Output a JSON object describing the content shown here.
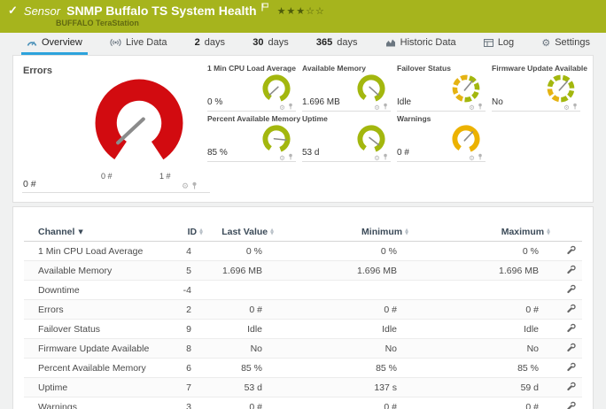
{
  "header": {
    "check_icon": "✓",
    "kind": "Sensor",
    "title": "SNMP Buffalo TS System Health",
    "device": "BUFFALO TeraStation",
    "stars_filled": "★★★",
    "stars_empty": "☆☆"
  },
  "tabs": [
    {
      "label": "Overview",
      "icon": "gauge-icon",
      "active": true
    },
    {
      "label": "Live Data",
      "icon": "broadcast-icon"
    },
    {
      "num": "2",
      "label": "days"
    },
    {
      "num": "30",
      "label": "days"
    },
    {
      "num": "365",
      "label": "days"
    },
    {
      "label": "Historic Data",
      "icon": "chart-icon"
    },
    {
      "label": "Log",
      "icon": "log-icon"
    },
    {
      "label": "Settings",
      "icon": "gear-icon"
    }
  ],
  "gauges": {
    "main": {
      "title": "Errors",
      "value": "0 #",
      "scale_min": "0 #",
      "scale_max": "1 #",
      "color": "#d20b10",
      "needle_deg": 137
    },
    "minis": [
      {
        "title": "1 Min CPU Load Average",
        "value": "0 %",
        "style": "solid",
        "color": "#a3b70e",
        "needle_deg": 137
      },
      {
        "title": "Available Memory",
        "value": "1.696 MB",
        "style": "solid",
        "color": "#a3b70e",
        "needle_deg": 42
      },
      {
        "title": "Failover Status",
        "value": "Idle",
        "style": "segmented-half",
        "color": "#a3b70e",
        "color2": "#e5b312",
        "needle_deg": -50
      },
      {
        "title": "Firmware Update Available",
        "value": "No",
        "style": "segmented-quarter",
        "color": "#a3b70e",
        "color2": "#e5b312",
        "needle_deg": -48
      },
      {
        "title": "Percent Available Memory",
        "value": "85 %",
        "style": "solid",
        "color": "#a3b70e",
        "needle_deg": 6
      },
      {
        "title": "Uptime",
        "value": "53 d",
        "style": "solid",
        "color": "#a3b70e",
        "needle_deg": 38
      },
      {
        "title": "Warnings",
        "value": "0 #",
        "style": "solid",
        "color": "#ecb200",
        "needle_deg": -47
      }
    ]
  },
  "table": {
    "columns": [
      "Channel",
      "ID",
      "Last Value",
      "Minimum",
      "Maximum"
    ],
    "sort_icon_active": "▼",
    "sort_icon_up": "▲",
    "sort_icon_down": "▼",
    "rows": [
      {
        "channel": "1 Min CPU Load Average",
        "id": "4",
        "last": "0 %",
        "min": "0 %",
        "max": "0 %"
      },
      {
        "channel": "Available Memory",
        "id": "5",
        "last": "1.696 MB",
        "min": "1.696 MB",
        "max": "1.696 MB"
      },
      {
        "channel": "Downtime",
        "id": "-4",
        "last": "",
        "min": "",
        "max": ""
      },
      {
        "channel": "Errors",
        "id": "2",
        "last": "0 #",
        "min": "0 #",
        "max": "0 #"
      },
      {
        "channel": "Failover Status",
        "id": "9",
        "last": "Idle",
        "min": "Idle",
        "max": "Idle"
      },
      {
        "channel": "Firmware Update Available",
        "id": "8",
        "last": "No",
        "min": "No",
        "max": "No"
      },
      {
        "channel": "Percent Available Memory",
        "id": "6",
        "last": "85 %",
        "min": "85 %",
        "max": "85 %"
      },
      {
        "channel": "Uptime",
        "id": "7",
        "last": "53 d",
        "min": "137 s",
        "max": "59 d"
      },
      {
        "channel": "Warnings",
        "id": "3",
        "last": "0 #",
        "min": "0 #",
        "max": "0 #"
      }
    ]
  },
  "chrome": {
    "gear_icon": "⚙"
  }
}
